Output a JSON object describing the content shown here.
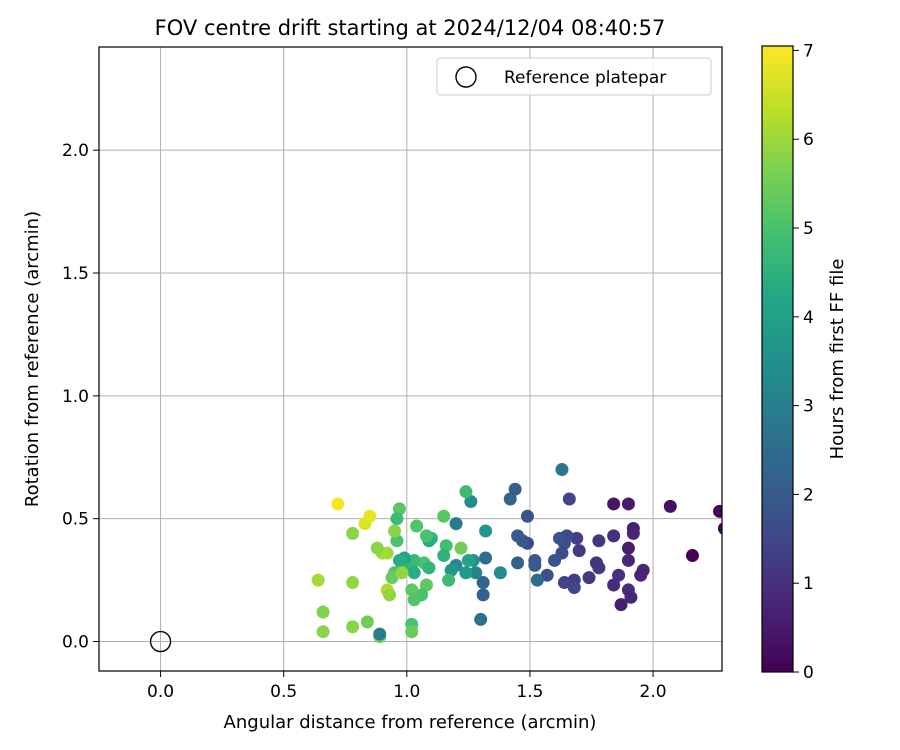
{
  "chart_data": {
    "type": "scatter",
    "title": "FOV centre drift starting at 2024/12/04 08:40:57",
    "xlabel": "Angular distance from reference (arcmin)",
    "ylabel": "Rotation from reference (arcmin)",
    "xlim": [
      -0.25,
      2.28
    ],
    "ylim": [
      -0.12,
      2.42
    ],
    "xticks": [
      "0.0",
      "0.5",
      "1.0",
      "1.5",
      "2.0"
    ],
    "yticks": [
      "0.0",
      "0.5",
      "1.0",
      "1.5",
      "2.0"
    ],
    "grid": true,
    "legend": {
      "position": "top-right",
      "entries": [
        "Reference platepar"
      ]
    },
    "colorbar": {
      "label": "Hours from first FF file",
      "range": [
        0,
        7.05
      ],
      "ticks": [
        "0",
        "1",
        "2",
        "3",
        "4",
        "5",
        "6",
        "7"
      ],
      "colormap": "viridis"
    },
    "reference_point": {
      "x": 0.0,
      "y": 0.0
    },
    "points": [
      {
        "x": 2.27,
        "y": 0.53,
        "h": 0.1
      },
      {
        "x": 2.29,
        "y": 0.46,
        "h": 0.1
      },
      {
        "x": 2.16,
        "y": 0.35,
        "h": 0.0
      },
      {
        "x": 2.07,
        "y": 0.55,
        "h": 0.3
      },
      {
        "x": 1.84,
        "y": 0.56,
        "h": 0.4
      },
      {
        "x": 1.9,
        "y": 0.56,
        "h": 0.5
      },
      {
        "x": 1.92,
        "y": 0.46,
        "h": 0.6
      },
      {
        "x": 1.92,
        "y": 0.44,
        "h": 0.7
      },
      {
        "x": 1.9,
        "y": 0.38,
        "h": 0.6
      },
      {
        "x": 1.9,
        "y": 0.33,
        "h": 0.8
      },
      {
        "x": 1.96,
        "y": 0.29,
        "h": 0.8
      },
      {
        "x": 1.95,
        "y": 0.27,
        "h": 0.7
      },
      {
        "x": 1.9,
        "y": 0.21,
        "h": 0.9
      },
      {
        "x": 1.91,
        "y": 0.18,
        "h": 0.8
      },
      {
        "x": 1.87,
        "y": 0.15,
        "h": 0.6
      },
      {
        "x": 1.86,
        "y": 0.27,
        "h": 1.0
      },
      {
        "x": 1.84,
        "y": 0.23,
        "h": 0.9
      },
      {
        "x": 1.84,
        "y": 0.43,
        "h": 1.0
      },
      {
        "x": 1.78,
        "y": 0.41,
        "h": 1.1
      },
      {
        "x": 1.78,
        "y": 0.3,
        "h": 1.2
      },
      {
        "x": 1.77,
        "y": 0.32,
        "h": 1.1
      },
      {
        "x": 1.74,
        "y": 0.26,
        "h": 1.2
      },
      {
        "x": 1.7,
        "y": 0.37,
        "h": 1.2
      },
      {
        "x": 1.69,
        "y": 0.42,
        "h": 1.3
      },
      {
        "x": 1.68,
        "y": 0.25,
        "h": 1.3
      },
      {
        "x": 1.68,
        "y": 0.22,
        "h": 1.5
      },
      {
        "x": 1.64,
        "y": 0.24,
        "h": 1.4
      },
      {
        "x": 1.66,
        "y": 0.58,
        "h": 1.5
      },
      {
        "x": 1.65,
        "y": 0.43,
        "h": 1.6
      },
      {
        "x": 1.64,
        "y": 0.4,
        "h": 1.7
      },
      {
        "x": 1.63,
        "y": 0.36,
        "h": 1.6
      },
      {
        "x": 1.62,
        "y": 0.42,
        "h": 1.8
      },
      {
        "x": 1.6,
        "y": 0.33,
        "h": 1.8
      },
      {
        "x": 1.57,
        "y": 0.27,
        "h": 1.7
      },
      {
        "x": 1.52,
        "y": 0.33,
        "h": 1.9
      },
      {
        "x": 1.52,
        "y": 0.31,
        "h": 2.0
      },
      {
        "x": 1.49,
        "y": 0.51,
        "h": 1.8
      },
      {
        "x": 1.49,
        "y": 0.4,
        "h": 1.6
      },
      {
        "x": 1.47,
        "y": 0.41,
        "h": 1.9
      },
      {
        "x": 1.45,
        "y": 0.43,
        "h": 2.0
      },
      {
        "x": 1.44,
        "y": 0.62,
        "h": 2.1
      },
      {
        "x": 1.42,
        "y": 0.58,
        "h": 2.2
      },
      {
        "x": 1.45,
        "y": 0.32,
        "h": 2.2
      },
      {
        "x": 1.53,
        "y": 0.25,
        "h": 2.4
      },
      {
        "x": 1.63,
        "y": 0.7,
        "h": 2.8
      },
      {
        "x": 1.32,
        "y": 0.34,
        "h": 2.5
      },
      {
        "x": 1.31,
        "y": 0.24,
        "h": 2.3
      },
      {
        "x": 1.31,
        "y": 0.19,
        "h": 2.2
      },
      {
        "x": 1.3,
        "y": 0.09,
        "h": 2.6
      },
      {
        "x": 1.38,
        "y": 0.28,
        "h": 3.4
      },
      {
        "x": 1.28,
        "y": 0.28,
        "h": 3.1
      },
      {
        "x": 1.26,
        "y": 0.57,
        "h": 3.4
      },
      {
        "x": 1.32,
        "y": 0.45,
        "h": 3.7
      },
      {
        "x": 1.2,
        "y": 0.48,
        "h": 2.9
      },
      {
        "x": 1.27,
        "y": 0.33,
        "h": 3.6
      },
      {
        "x": 1.24,
        "y": 0.28,
        "h": 3.8
      },
      {
        "x": 1.25,
        "y": 0.33,
        "h": 4.1
      },
      {
        "x": 1.2,
        "y": 0.31,
        "h": 3.3
      },
      {
        "x": 1.18,
        "y": 0.29,
        "h": 3.7
      },
      {
        "x": 1.24,
        "y": 0.61,
        "h": 4.8
      },
      {
        "x": 1.22,
        "y": 0.38,
        "h": 5.5
      },
      {
        "x": 1.16,
        "y": 0.39,
        "h": 4.9
      },
      {
        "x": 1.15,
        "y": 0.35,
        "h": 4.5
      },
      {
        "x": 1.17,
        "y": 0.25,
        "h": 4.8
      },
      {
        "x": 1.15,
        "y": 0.51,
        "h": 5.2
      },
      {
        "x": 1.1,
        "y": 0.42,
        "h": 4.6
      },
      {
        "x": 1.09,
        "y": 0.41,
        "h": 4.3
      },
      {
        "x": 1.08,
        "y": 0.43,
        "h": 5.0
      },
      {
        "x": 1.07,
        "y": 0.32,
        "h": 5.0
      },
      {
        "x": 1.09,
        "y": 0.3,
        "h": 4.6
      },
      {
        "x": 1.08,
        "y": 0.23,
        "h": 5.3
      },
      {
        "x": 1.06,
        "y": 0.19,
        "h": 5.0
      },
      {
        "x": 1.04,
        "y": 0.47,
        "h": 5.1
      },
      {
        "x": 1.03,
        "y": 0.33,
        "h": 4.8
      },
      {
        "x": 1.02,
        "y": 0.31,
        "h": 4.7
      },
      {
        "x": 1.03,
        "y": 0.28,
        "h": 4.4
      },
      {
        "x": 1.02,
        "y": 0.21,
        "h": 5.3
      },
      {
        "x": 1.03,
        "y": 0.17,
        "h": 5.1
      },
      {
        "x": 1.02,
        "y": 0.07,
        "h": 5.0
      },
      {
        "x": 1.02,
        "y": 0.04,
        "h": 5.4
      },
      {
        "x": 0.99,
        "y": 0.34,
        "h": 4.2
      },
      {
        "x": 0.98,
        "y": 0.3,
        "h": 4.6
      },
      {
        "x": 0.97,
        "y": 0.33,
        "h": 4.4
      },
      {
        "x": 0.96,
        "y": 0.41,
        "h": 5.0
      },
      {
        "x": 0.97,
        "y": 0.54,
        "h": 5.2
      },
      {
        "x": 0.95,
        "y": 0.28,
        "h": 5.1
      },
      {
        "x": 0.94,
        "y": 0.26,
        "h": 5.4
      },
      {
        "x": 0.96,
        "y": 0.5,
        "h": 4.8
      },
      {
        "x": 0.95,
        "y": 0.45,
        "h": 5.8
      },
      {
        "x": 0.98,
        "y": 0.28,
        "h": 5.9
      },
      {
        "x": 0.92,
        "y": 0.36,
        "h": 6.0
      },
      {
        "x": 0.9,
        "y": 0.36,
        "h": 6.1
      },
      {
        "x": 0.88,
        "y": 0.38,
        "h": 5.8
      },
      {
        "x": 0.92,
        "y": 0.21,
        "h": 6.2
      },
      {
        "x": 0.93,
        "y": 0.19,
        "h": 5.9
      },
      {
        "x": 0.89,
        "y": 0.02,
        "h": 5.6
      },
      {
        "x": 0.89,
        "y": 0.03,
        "h": 3.0
      },
      {
        "x": 0.84,
        "y": 0.08,
        "h": 5.5
      },
      {
        "x": 0.83,
        "y": 0.48,
        "h": 6.7
      },
      {
        "x": 0.85,
        "y": 0.51,
        "h": 6.8
      },
      {
        "x": 0.78,
        "y": 0.44,
        "h": 5.8
      },
      {
        "x": 0.72,
        "y": 0.56,
        "h": 7.0
      },
      {
        "x": 0.78,
        "y": 0.24,
        "h": 5.9
      },
      {
        "x": 0.78,
        "y": 0.06,
        "h": 5.8
      },
      {
        "x": 0.64,
        "y": 0.25,
        "h": 6.1
      },
      {
        "x": 0.66,
        "y": 0.12,
        "h": 5.7
      },
      {
        "x": 0.66,
        "y": 0.04,
        "h": 5.8
      }
    ]
  }
}
